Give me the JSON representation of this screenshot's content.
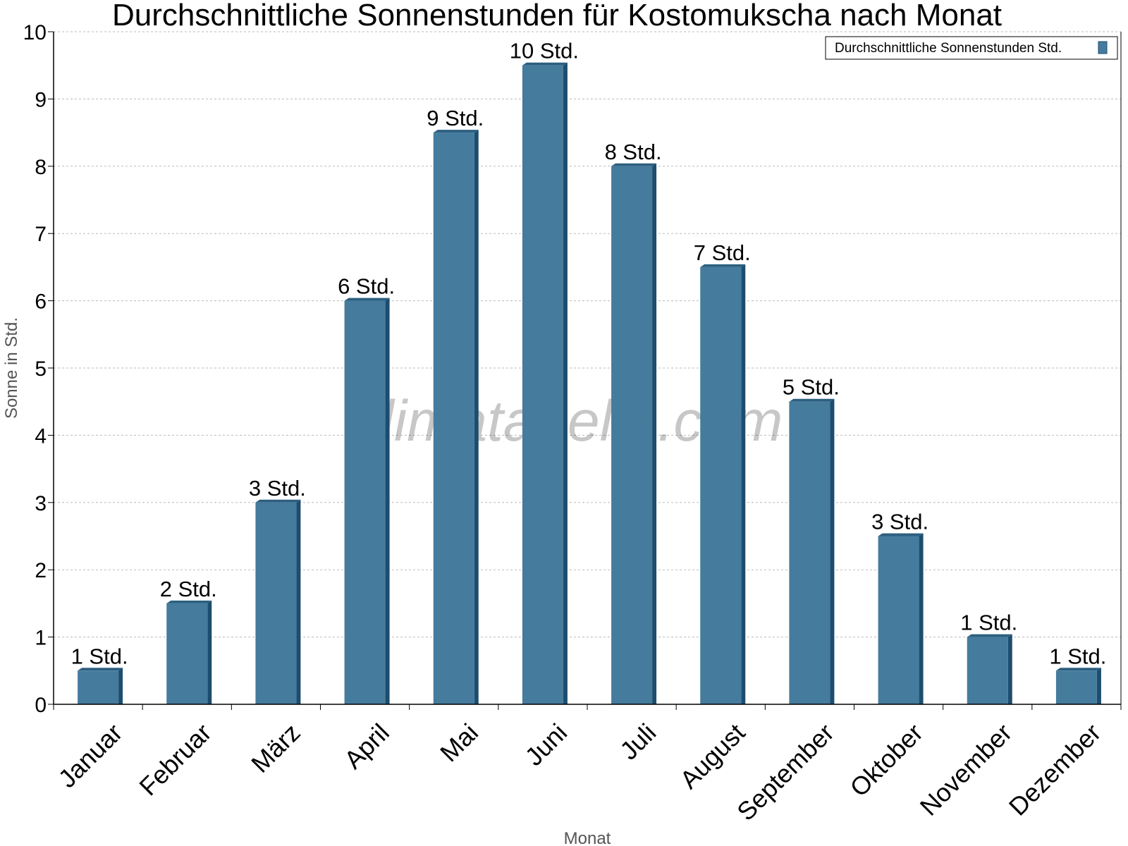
{
  "chart_data": {
    "type": "bar",
    "title": "Durchschnittliche Sonnenstunden für Kostomukscha nach Monat",
    "xlabel": "Monat",
    "ylabel": "Sonne in Std.",
    "ylim": [
      0,
      10
    ],
    "yticks": [
      "0",
      "1",
      "2",
      "3",
      "4",
      "5",
      "6",
      "7",
      "8",
      "9",
      "10"
    ],
    "grid": true,
    "legend_position": "top-right",
    "categories": [
      "Januar",
      "Februar",
      "März",
      "April",
      "Mai",
      "Juni",
      "Juli",
      "August",
      "September",
      "Oktober",
      "November",
      "Dezember"
    ],
    "series": [
      {
        "name": "Durchschnittliche Sonnenstunden Std.",
        "values": [
          0.5,
          1.5,
          3,
          6,
          8.5,
          9.5,
          8,
          6.5,
          4.5,
          2.5,
          1,
          0.5
        ],
        "data_labels": [
          "1 Std.",
          "2 Std.",
          "3 Std.",
          "6 Std.",
          "9 Std.",
          "10 Std.",
          "8 Std.",
          "7 Std.",
          "5 Std.",
          "3 Std.",
          "1 Std.",
          "1 Std."
        ]
      }
    ],
    "colors": {
      "bar": "#457b9d",
      "bar_side": "#1d4d6e",
      "bar_top": "#2c5f80"
    },
    "watermark": "klimatabelle.com"
  }
}
